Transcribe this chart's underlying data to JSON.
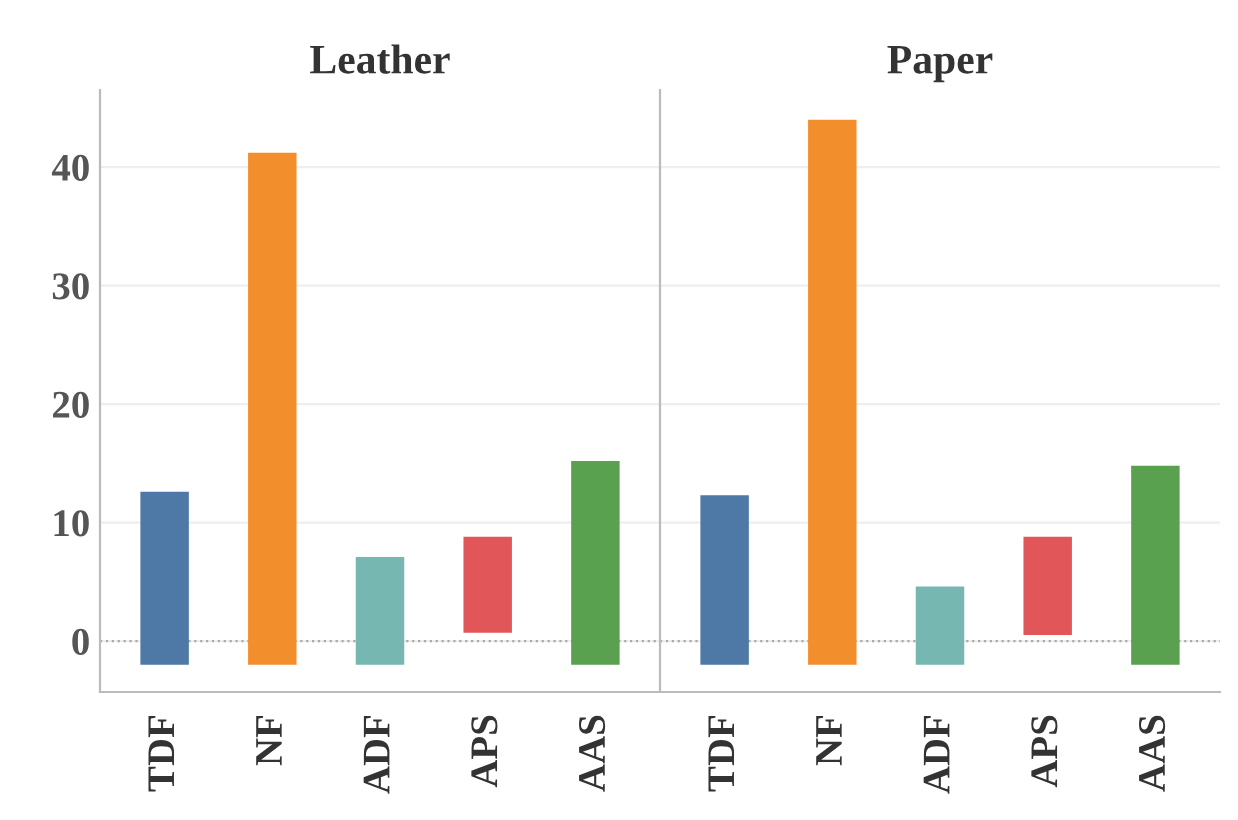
{
  "chart_data": [
    {
      "type": "bar",
      "title": "Leather",
      "categories": [
        "TDF",
        "NF",
        "ADF",
        "APS",
        "AAS"
      ],
      "base": [
        -2,
        -2,
        -2,
        0.7,
        -2
      ],
      "values": [
        14.6,
        43.2,
        9.1,
        8.1,
        17.2
      ],
      "colors": [
        "#4e79a7",
        "#f28e2b",
        "#76b7b2",
        "#e15759",
        "#59a14f"
      ],
      "ylim": [
        -4.3,
        46.5
      ],
      "yticks": [
        0,
        10,
        20,
        30,
        40
      ],
      "grid": "y",
      "ref_lines": [
        {
          "axis": "y",
          "value": 0,
          "line_style": "dotted",
          "color": "#aaaaaa"
        }
      ]
    },
    {
      "type": "bar",
      "title": "Paper",
      "categories": [
        "TDF",
        "NF",
        "ADF",
        "APS",
        "AAS"
      ],
      "base": [
        -2,
        -2,
        -2,
        0.5,
        -2
      ],
      "values": [
        14.3,
        46.0,
        6.6,
        8.3,
        16.8
      ],
      "colors": [
        "#4e79a7",
        "#f28e2b",
        "#76b7b2",
        "#e15759",
        "#59a14f"
      ],
      "ylim": [
        -4.3,
        46.5
      ],
      "yticks": [
        0,
        10,
        20,
        30,
        40
      ],
      "grid": "y",
      "tick_labels": "x",
      "ref_lines": [
        {
          "axis": "y",
          "value": 0,
          "line_style": "dotted",
          "color": "#aaaaaa"
        }
      ]
    }
  ]
}
